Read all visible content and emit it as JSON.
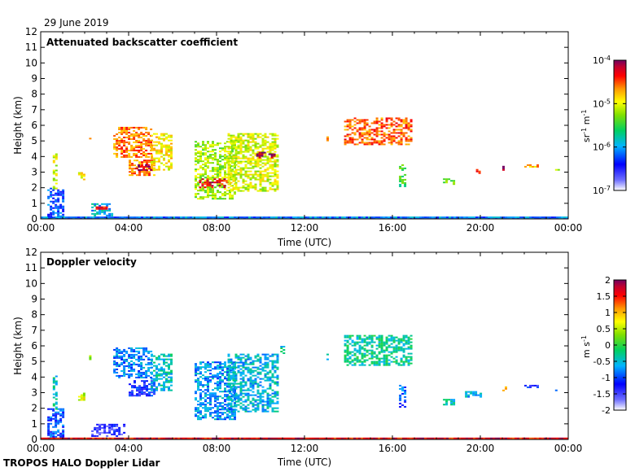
{
  "date_label": "29 June 2019",
  "footer": "TROPOS HALO Doppler Lidar",
  "chart_data": [
    {
      "type": "heatmap",
      "title": "Attenuated backscatter coefficient",
      "xlabel": "Time (UTC)",
      "ylabel": "Height (km)",
      "x_ticks": [
        "00:00",
        "04:00",
        "08:00",
        "12:00",
        "16:00",
        "20:00",
        "00:00"
      ],
      "y_ticks": [
        "0",
        "1",
        "2",
        "3",
        "4",
        "5",
        "6",
        "7",
        "8",
        "9",
        "10",
        "11",
        "12"
      ],
      "xlim_hours": [
        0,
        24
      ],
      "ylim_km": [
        0,
        12
      ],
      "colorbar": {
        "scale": "log",
        "range": [
          1e-07,
          0.0001
        ],
        "tick_mantissa": "10",
        "tick_exponents": [
          "-4",
          "-5",
          "-6",
          "-7"
        ],
        "unit_parts": [
          "sr",
          "-1",
          " m",
          "-1"
        ]
      },
      "features": [
        {
          "t0": 0.3,
          "t1": 1.0,
          "h0": 0.0,
          "h1": 2.0,
          "level": 0.25
        },
        {
          "t0": 0.55,
          "t1": 0.75,
          "h0": 2.0,
          "h1": 4.2,
          "level": 0.65
        },
        {
          "t0": 1.7,
          "t1": 2.0,
          "h0": 2.5,
          "h1": 3.0,
          "level": 0.7
        },
        {
          "t0": 2.3,
          "t1": 3.3,
          "h0": 0.2,
          "h1": 1.0,
          "level": 0.35
        },
        {
          "t0": 2.5,
          "t1": 3.0,
          "h0": 0.6,
          "h1": 0.8,
          "level": 0.9
        },
        {
          "t0": 2.2,
          "t1": 2.3,
          "h0": 4.8,
          "h1": 5.2,
          "level": 0.8
        },
        {
          "t0": 3.3,
          "t1": 5.0,
          "h0": 4.0,
          "h1": 5.9,
          "level": 0.8
        },
        {
          "t0": 4.0,
          "t1": 5.2,
          "h0": 2.8,
          "h1": 3.8,
          "level": 0.8
        },
        {
          "t0": 4.3,
          "t1": 5.0,
          "h0": 3.1,
          "h1": 3.5,
          "level": 0.95
        },
        {
          "t0": 5.0,
          "t1": 6.0,
          "h0": 3.2,
          "h1": 5.5,
          "level": 0.7
        },
        {
          "t0": 7.0,
          "t1": 8.8,
          "h0": 1.3,
          "h1": 5.0,
          "level": 0.6
        },
        {
          "t0": 7.2,
          "t1": 8.5,
          "h0": 2.0,
          "h1": 2.6,
          "level": 0.9
        },
        {
          "t0": 8.5,
          "t1": 10.8,
          "h0": 1.8,
          "h1": 5.5,
          "level": 0.65
        },
        {
          "t0": 9.8,
          "t1": 10.6,
          "h0": 3.9,
          "h1": 4.3,
          "level": 0.95
        },
        {
          "t0": 13.0,
          "t1": 13.1,
          "h0": 5.0,
          "h1": 5.5,
          "level": 0.8
        },
        {
          "t0": 13.8,
          "t1": 16.9,
          "h0": 4.8,
          "h1": 6.5,
          "level": 0.82
        },
        {
          "t0": 16.3,
          "t1": 16.6,
          "h0": 2.1,
          "h1": 3.5,
          "level": 0.5
        },
        {
          "t0": 18.3,
          "t1": 18.8,
          "h0": 2.2,
          "h1": 2.6,
          "level": 0.55
        },
        {
          "t0": 19.8,
          "t1": 20.0,
          "h0": 2.9,
          "h1": 3.2,
          "level": 0.85
        },
        {
          "t0": 21.0,
          "t1": 21.2,
          "h0": 3.1,
          "h1": 3.4,
          "level": 0.95
        },
        {
          "t0": 22.0,
          "t1": 22.6,
          "h0": 3.3,
          "h1": 3.5,
          "level": 0.75
        },
        {
          "t0": 23.4,
          "t1": 23.6,
          "h0": 3.0,
          "h1": 3.2,
          "level": 0.6
        },
        {
          "t0": 0.0,
          "t1": 24.0,
          "h0": 0.0,
          "h1": 0.15,
          "level": 0.3
        }
      ]
    },
    {
      "type": "heatmap",
      "title": "Doppler velocity",
      "xlabel": "Time (UTC)",
      "ylabel": "Height (km)",
      "x_ticks": [
        "00:00",
        "04:00",
        "08:00",
        "12:00",
        "16:00",
        "20:00",
        "00:00"
      ],
      "y_ticks": [
        "0",
        "1",
        "2",
        "3",
        "4",
        "5",
        "6",
        "7",
        "8",
        "9",
        "10",
        "11",
        "12"
      ],
      "xlim_hours": [
        0,
        24
      ],
      "ylim_km": [
        0,
        12
      ],
      "colorbar": {
        "scale": "linear",
        "range": [
          -2,
          2
        ],
        "ticks": [
          "2",
          "1.5",
          "1",
          "0.5",
          "0",
          "-0.5",
          "-1",
          "-1.5",
          "-2"
        ],
        "unit_parts": [
          "m s",
          "-1"
        ]
      },
      "features": [
        {
          "t0": 0.3,
          "t1": 1.0,
          "h0": 0.0,
          "h1": 2.0,
          "level": 0.25
        },
        {
          "t0": 0.55,
          "t1": 0.75,
          "h0": 2.0,
          "h1": 4.2,
          "level": 0.4
        },
        {
          "t0": 1.7,
          "t1": 2.0,
          "h0": 2.5,
          "h1": 3.0,
          "level": 0.65
        },
        {
          "t0": 2.3,
          "t1": 3.8,
          "h0": 0.2,
          "h1": 1.0,
          "level": 0.15
        },
        {
          "t0": 2.2,
          "t1": 2.3,
          "h0": 5.1,
          "h1": 5.4,
          "level": 0.55
        },
        {
          "t0": 3.3,
          "t1": 5.0,
          "h0": 4.0,
          "h1": 5.9,
          "level": 0.3
        },
        {
          "t0": 4.0,
          "t1": 5.2,
          "h0": 2.8,
          "h1": 3.8,
          "level": 0.2
        },
        {
          "t0": 5.0,
          "t1": 6.0,
          "h0": 3.2,
          "h1": 5.5,
          "level": 0.38
        },
        {
          "t0": 7.0,
          "t1": 8.8,
          "h0": 1.3,
          "h1": 5.0,
          "level": 0.32
        },
        {
          "t0": 8.5,
          "t1": 10.8,
          "h0": 1.8,
          "h1": 5.5,
          "level": 0.36
        },
        {
          "t0": 10.9,
          "t1": 11.1,
          "h0": 5.5,
          "h1": 6.0,
          "level": 0.4
        },
        {
          "t0": 13.0,
          "t1": 13.1,
          "h0": 5.0,
          "h1": 5.5,
          "level": 0.4
        },
        {
          "t0": 13.8,
          "t1": 16.9,
          "h0": 4.8,
          "h1": 6.7,
          "level": 0.42
        },
        {
          "t0": 16.3,
          "t1": 16.6,
          "h0": 2.1,
          "h1": 3.5,
          "level": 0.25
        },
        {
          "t0": 18.3,
          "t1": 18.8,
          "h0": 2.2,
          "h1": 2.6,
          "level": 0.4
        },
        {
          "t0": 19.3,
          "t1": 20.0,
          "h0": 2.7,
          "h1": 3.1,
          "level": 0.35
        },
        {
          "t0": 21.0,
          "t1": 21.2,
          "h0": 3.1,
          "h1": 3.4,
          "level": 0.75
        },
        {
          "t0": 22.0,
          "t1": 22.6,
          "h0": 3.3,
          "h1": 3.5,
          "level": 0.2
        },
        {
          "t0": 23.4,
          "t1": 23.6,
          "h0": 3.0,
          "h1": 3.2,
          "level": 0.25
        },
        {
          "t0": 0.0,
          "t1": 24.0,
          "h0": 0.0,
          "h1": 0.12,
          "level": 0.9
        }
      ]
    }
  ]
}
